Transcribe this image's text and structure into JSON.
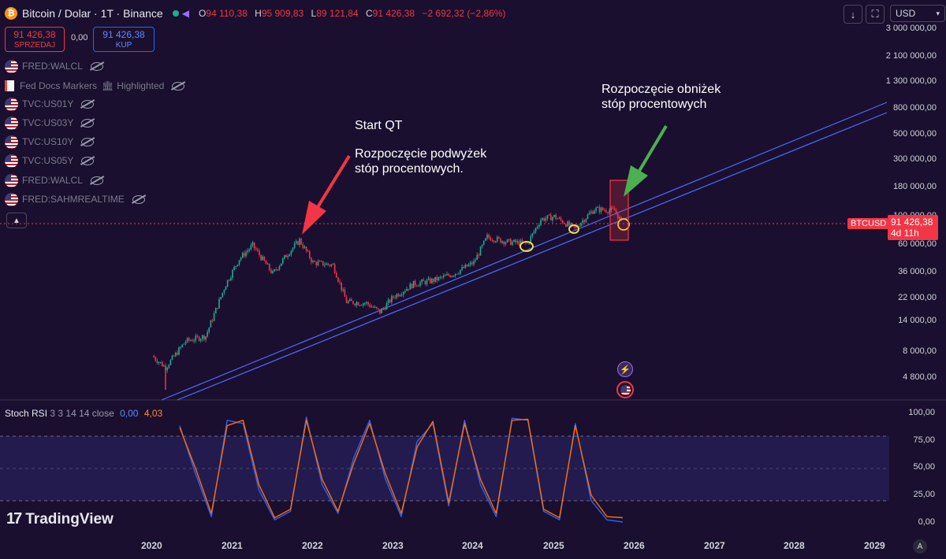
{
  "header": {
    "title": "Bitcoin / Dolar · 1T · Binance",
    "ohlc": [
      {
        "k": "O",
        "v": "94 110,38"
      },
      {
        "k": "H",
        "v": "95 909,83"
      },
      {
        "k": "L",
        "v": "89 121,84"
      },
      {
        "k": "C",
        "v": "91 426,38"
      }
    ],
    "change": "−2 692,32 (−2,86%)",
    "currency": "USD"
  },
  "trade": {
    "sell_price": "91 426,38",
    "sell_label": "SPRZEDAJ",
    "spread": "0,00",
    "buy_price": "91 426,38",
    "buy_label": "KUP"
  },
  "indicators": [
    {
      "label": "FRED:WALCL",
      "icon": "us-flag"
    },
    {
      "label": "Fed Docs Markers",
      "extra": "Highlighted",
      "icon": "document"
    },
    {
      "label": "TVC:US01Y",
      "icon": "us-flag"
    },
    {
      "label": "TVC:US03Y",
      "icon": "us-flag"
    },
    {
      "label": "TVC:US10Y",
      "icon": "us-flag"
    },
    {
      "label": "TVC:US05Y",
      "icon": "us-flag"
    },
    {
      "label": "FRED:WALCL",
      "icon": "us-flag"
    },
    {
      "label": "FRED:SAHMREALTIME",
      "icon": "us-flag"
    }
  ],
  "annotations": {
    "start_qt": "Start QT",
    "hikes_line1": "Rozpoczęcie podwyżek",
    "hikes_line2": "stóp procentowych.",
    "cuts_line1": "Rozpoczęcie obniżek",
    "cuts_line2": "stóp procentowych"
  },
  "price_axis": [
    "3 000 000,00",
    "2 100 000,00",
    "1 300 000,00",
    "800 000,00",
    "500 000,00",
    "300 000,00",
    "180 000,00",
    "100 000,00",
    "60 000,00",
    "36 000,00",
    "22 000,00",
    "14 000,00",
    "8 000,00",
    "4 800,00"
  ],
  "current_price": {
    "symbol": "BTCUSD",
    "price": "91 426,38",
    "countdown": "4d 11h"
  },
  "stoch_rsi": {
    "name": "Stoch RSI",
    "params": "3 3 14 14 close",
    "k_value": "0,00",
    "d_value": "4,03",
    "axis": [
      "100,00",
      "75,00",
      "50,00",
      "25,00",
      "0,00"
    ]
  },
  "time_axis": [
    "2020",
    "2021",
    "2022",
    "2023",
    "2024",
    "2025",
    "2026",
    "2027",
    "2028",
    "2029"
  ],
  "branding": "TradingView",
  "scale_button": "A",
  "colors": {
    "background": "#1a0f2e",
    "up": "#22ab94",
    "down": "#f23645",
    "trendline": "#4f6bff",
    "k_line": "#2962ff",
    "d_line": "#ff6d00",
    "arrow_red": "#f23645",
    "arrow_green": "#4caf50",
    "highlight": "#ffeb3b"
  },
  "chart_data": [
    {
      "type": "candlestick",
      "title": "Bitcoin / Dolar · 1T · Binance",
      "scale": "log",
      "x": [
        "2020-01",
        "2020-03",
        "2020-06",
        "2020-09",
        "2020-12",
        "2021-02",
        "2021-04",
        "2021-07",
        "2021-09",
        "2021-11",
        "2022-01",
        "2022-04",
        "2022-06",
        "2022-09",
        "2022-11",
        "2023-01",
        "2023-04",
        "2023-07",
        "2023-10",
        "2024-01",
        "2024-03",
        "2024-06",
        "2024-09",
        "2024-11",
        "2025-01",
        "2025-04",
        "2025-07",
        "2025-10",
        "2025-11"
      ],
      "close": [
        7200,
        5800,
        9500,
        10500,
        28000,
        45000,
        58000,
        34000,
        48000,
        64000,
        42000,
        40000,
        20000,
        19500,
        16500,
        22000,
        28000,
        30000,
        34000,
        42000,
        68000,
        62000,
        60000,
        95000,
        100000,
        80000,
        115000,
        112000,
        91426
      ],
      "annotations": [
        "Start QT",
        "Rozpoczęcie podwyżek stóp procentowych.",
        "Rozpoczęcie obniżek stóp procentowych"
      ]
    },
    {
      "type": "line",
      "title": "Stoch RSI 3 3 14 14 close",
      "ylim": [
        0,
        100
      ],
      "series": [
        {
          "name": "K",
          "values": [
            90,
            45,
            5,
            95,
            92,
            30,
            2,
            10,
            98,
            35,
            8,
            60,
            95,
            40,
            5,
            75,
            92,
            15,
            95,
            35,
            5,
            97,
            95,
            10,
            2,
            92,
            20,
            2,
            0
          ]
        },
        {
          "name": "D",
          "values": [
            88,
            50,
            8,
            90,
            95,
            35,
            4,
            12,
            95,
            40,
            10,
            55,
            92,
            45,
            8,
            70,
            94,
            18,
            92,
            40,
            8,
            95,
            96,
            12,
            4,
            90,
            25,
            5,
            4.03
          ]
        }
      ]
    }
  ]
}
